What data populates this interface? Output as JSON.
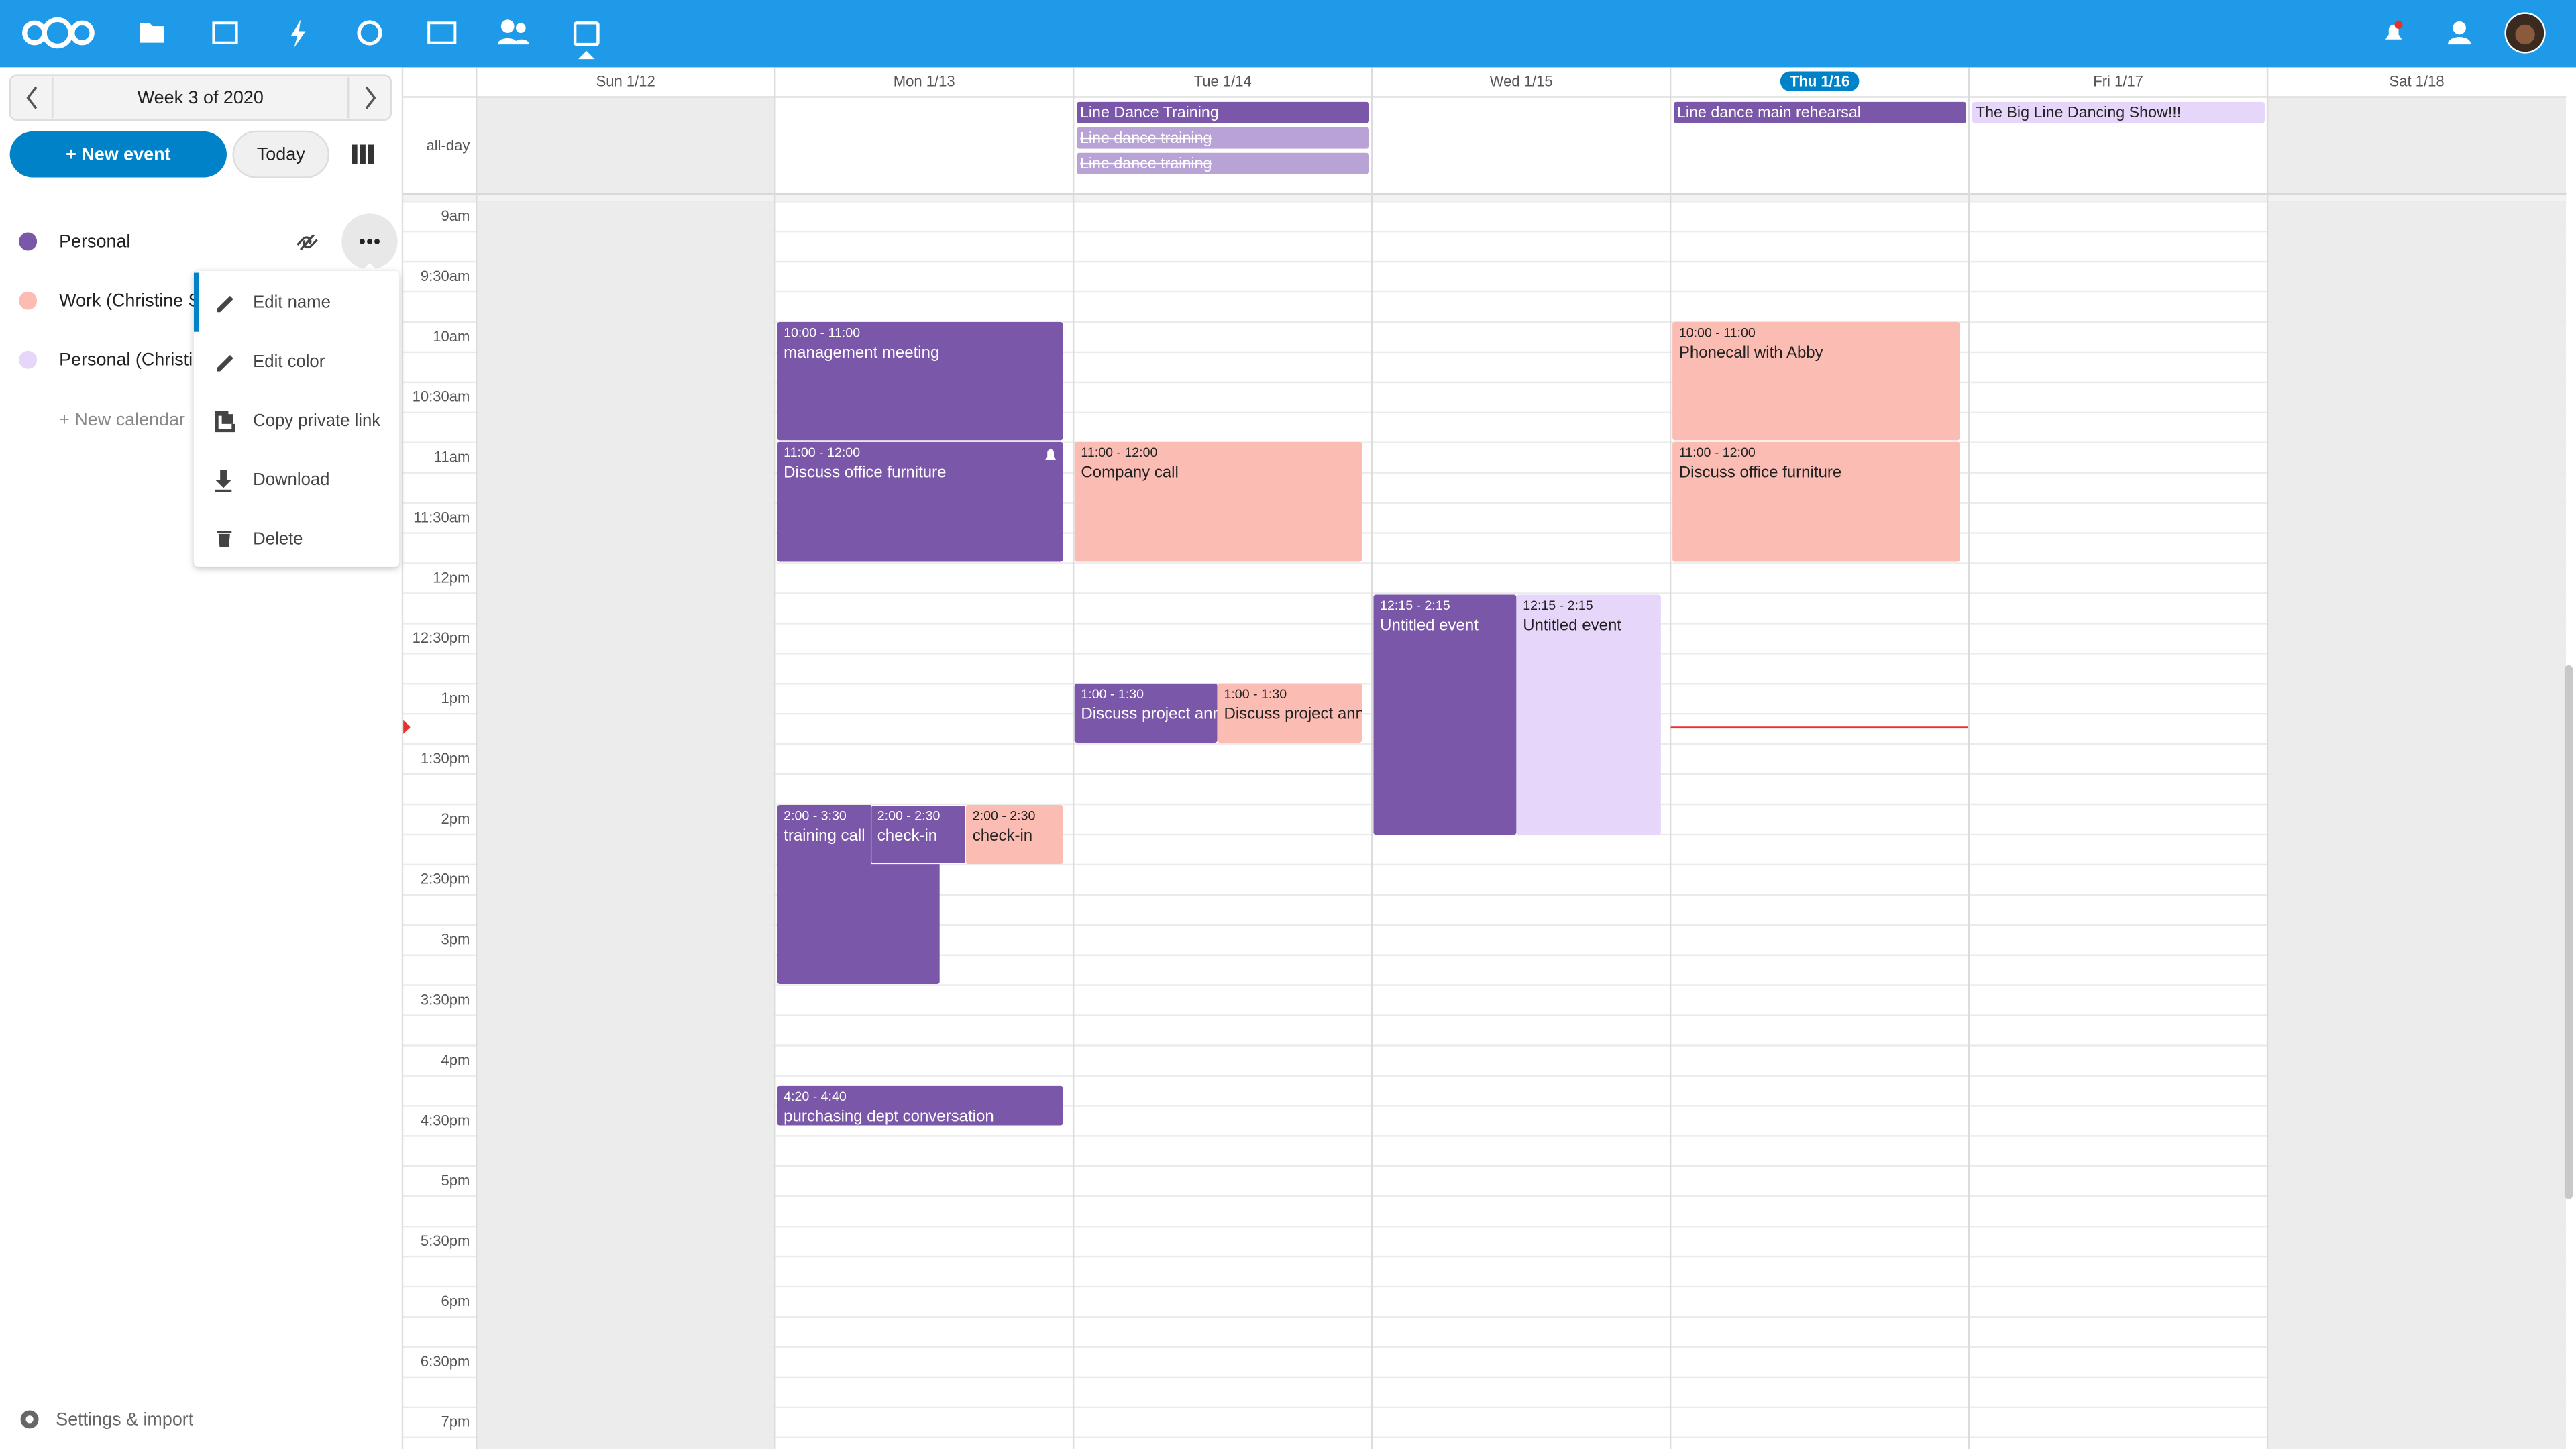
{
  "sidebar": {
    "week_label": "Week 3 of 2020",
    "new_event": "+ New event",
    "today": "Today",
    "calendars": [
      {
        "name": "Personal",
        "color": "#7b57a9"
      },
      {
        "name": "Work (Christine S",
        "color": "#fbbcb3"
      },
      {
        "name": "Personal (Christi",
        "color": "#e5d6fa"
      }
    ],
    "calendar_menu": [
      "Edit name",
      "Edit color",
      "Copy private link",
      "Download",
      "Delete"
    ],
    "new_calendar": "+ New calendar",
    "settings": "Settings & import"
  },
  "calendar": {
    "all_day_label": "all-day",
    "hours": [
      "9am",
      "9:30am",
      "10am",
      "10:30am",
      "11am",
      "11:30am",
      "12pm",
      "12:30pm",
      "1pm",
      "1:30pm",
      "2pm",
      "2:30pm",
      "3pm",
      "3:30pm",
      "4pm",
      "4:30pm",
      "5pm",
      "5:30pm",
      "6pm",
      "6:30pm",
      "7pm"
    ],
    "days": [
      {
        "label": "Sun 1/12",
        "all_day_events": [],
        "events": []
      },
      {
        "label": "Mon 1/13",
        "all_day_events": [],
        "events": [
          {
            "time": "10:00 - 11:00",
            "title": "management meeting",
            "color": "#7b57a9"
          },
          {
            "time": "11:00 - 12:00",
            "title": "Discuss office furniture",
            "color": "#7b57a9"
          },
          {
            "time": "2:00 - 3:30",
            "title": "training call",
            "color": "#7b57a9"
          },
          {
            "time": "2:00 - 2:30",
            "title": "check-in",
            "color": "#7b57a9"
          },
          {
            "time": "2:00 - 2:30",
            "title": "check-in",
            "color": "#fbbcb3"
          },
          {
            "time": "4:20 - 4:40",
            "title": "purchasing dept conversation",
            "color": "#7b57a9"
          }
        ]
      },
      {
        "label": "Tue 1/14",
        "all_day_events": [
          {
            "title": "Line Dance Training",
            "color": "#7b57a9"
          },
          {
            "title": "Line dance training",
            "color": "#b9a3d6",
            "strikethrough": true
          },
          {
            "title": "Line dance training",
            "color": "#b9a3d6",
            "strikethrough": true
          }
        ],
        "events": [
          {
            "time": "11:00 - 12:00",
            "title": "Company call",
            "color": "#fbbcb3"
          },
          {
            "time": "1:00 - 1:30",
            "title": "Discuss project announcement",
            "color": "#7b57a9"
          },
          {
            "time": "1:00 - 1:30",
            "title": "Discuss project announcement",
            "color": "#fbbcb3"
          }
        ]
      },
      {
        "label": "Wed 1/15",
        "all_day_events": [],
        "events": [
          {
            "time": "12:15 - 2:15",
            "title": "Untitled event",
            "color": "#7b57a9"
          },
          {
            "time": "12:15 - 2:15",
            "title": "Untitled event",
            "color": "#e5d6fa"
          }
        ]
      },
      {
        "label": "Thu 1/16",
        "today": true,
        "all_day_events": [
          {
            "title": "Line dance main rehearsal",
            "color": "#7b57a9"
          }
        ],
        "events": [
          {
            "time": "10:00 - 11:00",
            "title": "Phonecall with Abby",
            "color": "#fbbcb3"
          },
          {
            "time": "11:00 - 12:00",
            "title": "Discuss office furniture",
            "color": "#fbbcb3"
          }
        ]
      },
      {
        "label": "Fri 1/17",
        "all_day_events": [
          {
            "title": "The Big Line Dancing Show!!!",
            "color": "#e5d6fa"
          }
        ],
        "events": []
      },
      {
        "label": "Sat 1/18",
        "all_day_events": [],
        "events": []
      }
    ]
  }
}
